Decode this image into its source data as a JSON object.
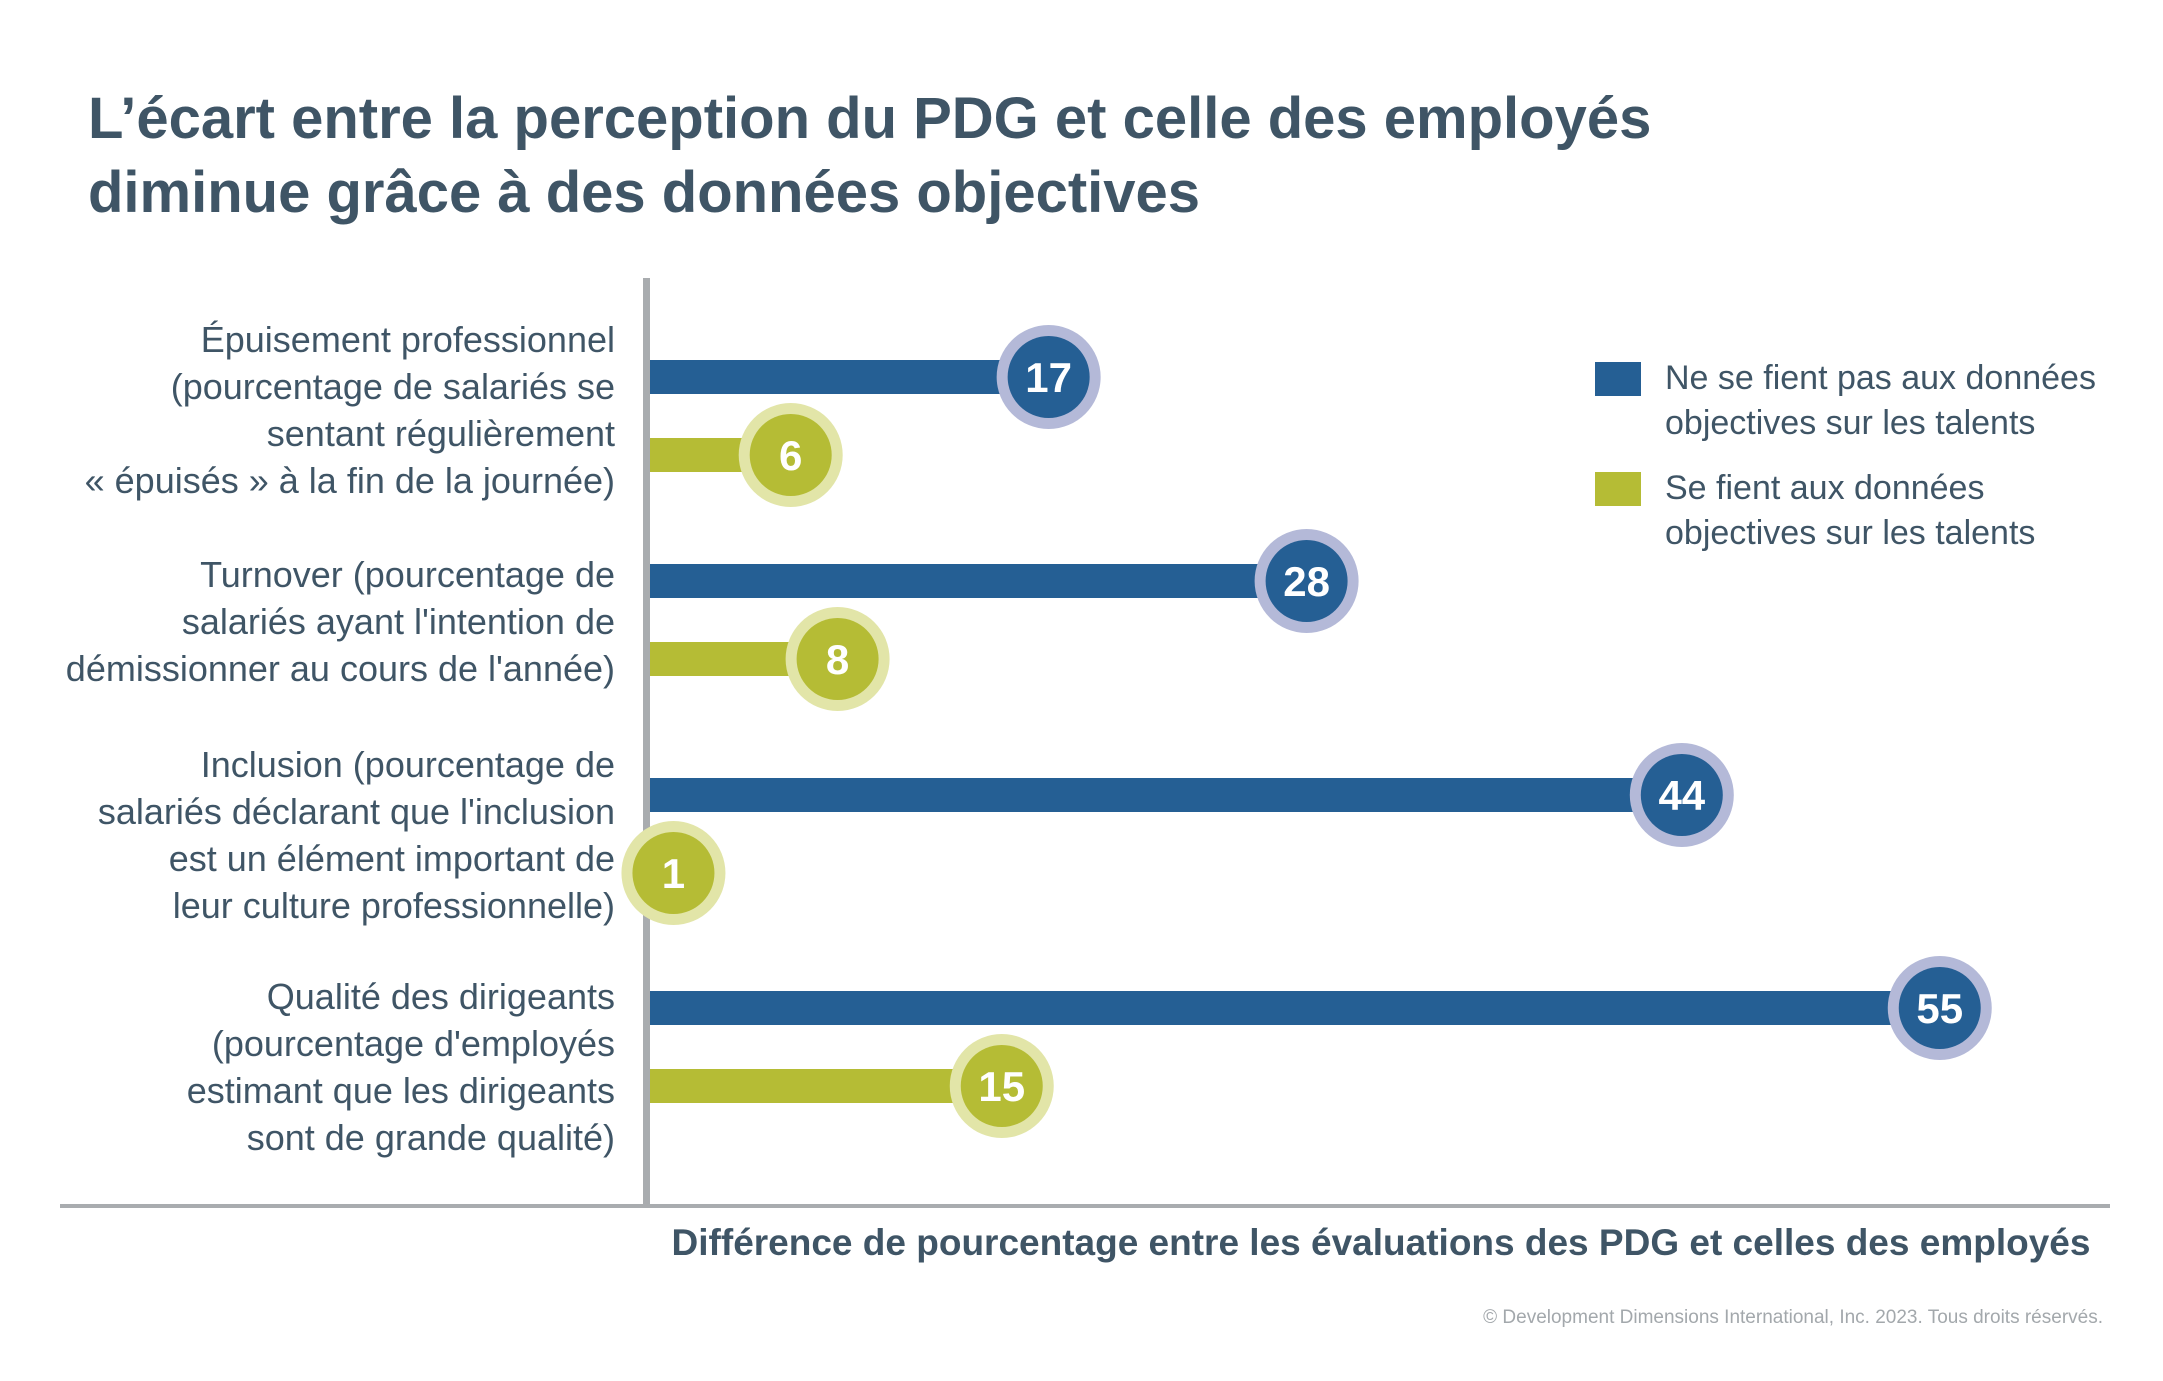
{
  "title": {
    "line1": "L’écart entre la perception du PDG et celle des employés",
    "line2": "diminue grâce à des données objectives"
  },
  "colors": {
    "blue": "#255f94",
    "blue_ring": "#b4b9d8",
    "green": "#b5bc35",
    "green_ring": "#e2e5a8",
    "axis": "#a9acaf",
    "text": "#3f5566"
  },
  "legend": {
    "items": [
      {
        "line1": "Ne se fient pas aux données",
        "line2": "objectives sur les talents",
        "color": "#255f94"
      },
      {
        "line1": "Se fient aux données",
        "line2": "objectives sur les talents",
        "color": "#b5bc35"
      }
    ]
  },
  "axis_title": "Différence de pourcentage entre les évaluations des PDG et celles des employés",
  "copyright": "© Development Dimensions International, Inc. 2023. Tous droits réservés.",
  "chart_data": {
    "type": "bar",
    "orientation": "horizontal",
    "title": "L’écart entre la perception du PDG et celle des employés diminue grâce à des données objectives",
    "xlabel": "Différence de pourcentage entre les évaluations des PDG et celles des employés",
    "ylabel": "",
    "xlim": [
      0,
      60
    ],
    "grid": false,
    "legend_position": "top-right",
    "categories": [
      {
        "lines": [
          "Épuisement professionnel",
          "(pourcentage de salariés se",
          "sentant régulièrement",
          "« épuisés » à la fin de la journée)"
        ]
      },
      {
        "lines": [
          "Turnover (pourcentage de",
          "salariés ayant l'intention de",
          "démissionner au cours de l'année)"
        ]
      },
      {
        "lines": [
          "Inclusion (pourcentage de",
          "salariés déclarant que l'inclusion",
          "est un élément important de",
          "leur culture professionnelle)"
        ]
      },
      {
        "lines": [
          "Qualité des dirigeants",
          "(pourcentage d'employés",
          "estimant que les dirigeants",
          "sont de grande qualité)"
        ]
      }
    ],
    "series": [
      {
        "name": "Ne se fient pas aux données objectives sur les talents",
        "values": [
          17,
          28,
          44,
          55
        ]
      },
      {
        "name": "Se fient aux données objectives sur les talents",
        "values": [
          6,
          8,
          1,
          15
        ]
      }
    ]
  }
}
